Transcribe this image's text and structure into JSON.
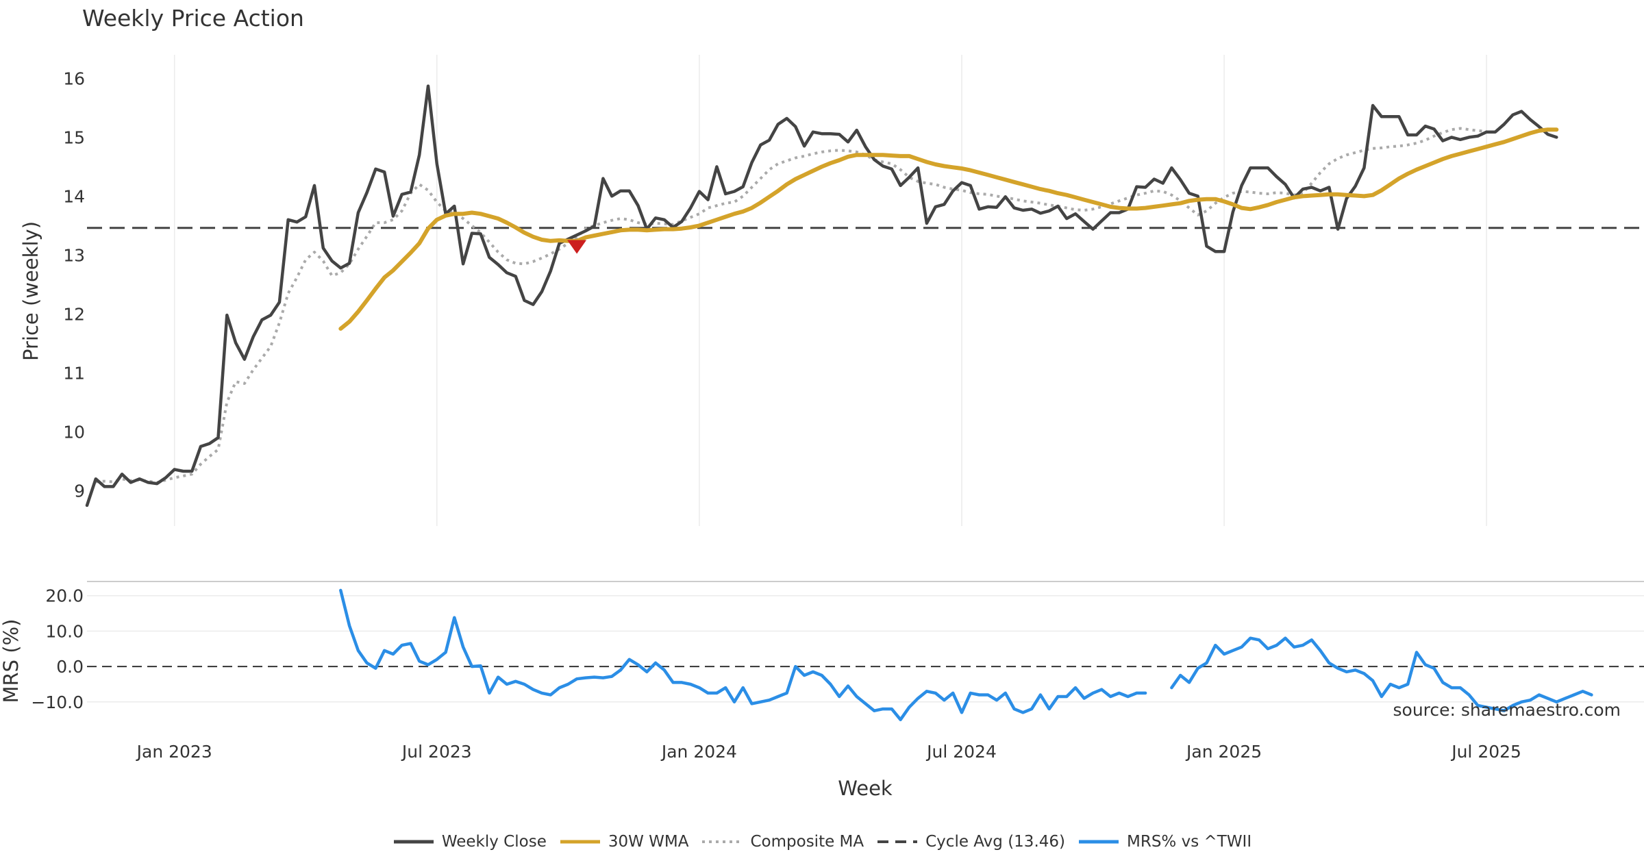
{
  "chart_data": [
    {
      "type": "line",
      "title": "Weekly Price Action",
      "ylabel": "Price (weekly)",
      "ylim": [
        8.4,
        16.4
      ],
      "yticks": [
        "9",
        "10",
        "11",
        "12",
        "13",
        "14",
        "15",
        "16"
      ],
      "xlim": [
        0,
        178
      ],
      "x_ticks": [
        {
          "label": "Jan 2023",
          "x": 10
        },
        {
          "label": "Jul 2023",
          "x": 40
        },
        {
          "label": "Jan 2024",
          "x": 70
        },
        {
          "label": "Jul 2024",
          "x": 100
        },
        {
          "label": "Jan 2025",
          "x": 130
        },
        {
          "label": "Jul 2025",
          "x": 160
        }
      ],
      "grid": true,
      "series": [
        {
          "name": "Weekly Close",
          "color": "#444444",
          "values": [
            8.75,
            9.2,
            9.07,
            9.07,
            9.28,
            9.14,
            9.2,
            9.14,
            9.12,
            9.22,
            9.36,
            9.33,
            9.33,
            9.75,
            9.8,
            9.9,
            11.98,
            11.51,
            11.23,
            11.61,
            11.9,
            11.98,
            12.2,
            13.6,
            13.56,
            13.65,
            14.18,
            13.12,
            12.9,
            12.78,
            12.86,
            13.72,
            14.06,
            14.46,
            14.41,
            13.66,
            14.03,
            14.07,
            14.7,
            15.87,
            14.55,
            13.7,
            13.83,
            12.85,
            13.37,
            13.36,
            12.96,
            12.84,
            12.7,
            12.64,
            12.23,
            12.16,
            12.38,
            12.73,
            13.2,
            13.27,
            13.34,
            13.41,
            13.49,
            14.3,
            14.0,
            14.09,
            14.09,
            13.84,
            13.44,
            13.63,
            13.6,
            13.47,
            13.57,
            13.8,
            14.08,
            13.94,
            14.5,
            14.04,
            14.08,
            14.16,
            14.57,
            14.87,
            14.95,
            15.22,
            15.32,
            15.18,
            14.85,
            15.09,
            15.06,
            15.06,
            15.05,
            14.92,
            15.12,
            14.84,
            14.62,
            14.51,
            14.46,
            14.18,
            14.32,
            14.48,
            13.54,
            13.82,
            13.86,
            14.09,
            14.23,
            14.18,
            13.78,
            13.82,
            13.81,
            13.99,
            13.8,
            13.76,
            13.78,
            13.71,
            13.75,
            13.83,
            13.62,
            13.7,
            13.57,
            13.44,
            13.58,
            13.72,
            13.72,
            13.78,
            14.16,
            14.15,
            14.29,
            14.22,
            14.48,
            14.28,
            14.05,
            14.0,
            13.15,
            13.06,
            13.06,
            13.73,
            14.18,
            14.48,
            14.48,
            14.48,
            14.33,
            14.2,
            13.97,
            14.12,
            14.15,
            14.09,
            14.15,
            13.44,
            13.96,
            14.17,
            14.48,
            15.54,
            15.35,
            15.35,
            15.35,
            15.04,
            15.04,
            15.19,
            15.14,
            14.94,
            15.0,
            14.96,
            15.0,
            15.02,
            15.09,
            15.09,
            15.22,
            15.38,
            15.44,
            15.3,
            15.18,
            15.05,
            15.0
          ]
        },
        {
          "name": "30W WMA",
          "color": "#d4a32a",
          "values": [
            null,
            null,
            null,
            null,
            null,
            null,
            null,
            null,
            null,
            null,
            null,
            null,
            null,
            null,
            null,
            null,
            null,
            null,
            null,
            null,
            null,
            null,
            null,
            null,
            null,
            null,
            null,
            null,
            null,
            11.75,
            11.87,
            12.04,
            12.23,
            12.43,
            12.62,
            12.74,
            12.89,
            13.04,
            13.2,
            13.45,
            13.6,
            13.67,
            13.7,
            13.7,
            13.72,
            13.7,
            13.66,
            13.62,
            13.55,
            13.47,
            13.38,
            13.31,
            13.26,
            13.24,
            13.25,
            13.24,
            13.24,
            13.3,
            13.33,
            13.36,
            13.39,
            13.42,
            13.43,
            13.43,
            13.42,
            13.43,
            13.44,
            13.44,
            13.45,
            13.47,
            13.5,
            13.55,
            13.6,
            13.65,
            13.7,
            13.74,
            13.8,
            13.89,
            13.99,
            14.09,
            14.2,
            14.29,
            14.36,
            14.43,
            14.5,
            14.56,
            14.61,
            14.67,
            14.7,
            14.7,
            14.7,
            14.7,
            14.69,
            14.68,
            14.68,
            14.63,
            14.58,
            14.54,
            14.51,
            14.49,
            14.47,
            14.44,
            14.4,
            14.36,
            14.32,
            14.28,
            14.24,
            14.2,
            14.16,
            14.12,
            14.09,
            14.05,
            14.02,
            13.98,
            13.94,
            13.9,
            13.86,
            13.82,
            13.8,
            13.79,
            13.79,
            13.8,
            13.82,
            13.84,
            13.86,
            13.88,
            13.92,
            13.94,
            13.95,
            13.95,
            13.91,
            13.86,
            13.8,
            13.78,
            13.81,
            13.85,
            13.9,
            13.94,
            13.98,
            14.0,
            14.01,
            14.02,
            14.03,
            14.03,
            14.02,
            14.01,
            14.0,
            14.02,
            14.1,
            14.2,
            14.3,
            14.38,
            14.45,
            14.51,
            14.57,
            14.63,
            14.68,
            14.72,
            14.76,
            14.8,
            14.84,
            14.88,
            14.92,
            14.97,
            15.02,
            15.07,
            15.11,
            15.13,
            15.13
          ]
        },
        {
          "name": "Composite MA",
          "color": "#aaaaaa",
          "values": [
            null,
            9.15,
            9.16,
            9.15,
            9.2,
            9.17,
            9.18,
            9.16,
            9.14,
            9.18,
            9.22,
            9.25,
            9.28,
            9.45,
            9.58,
            9.7,
            10.5,
            10.85,
            10.82,
            11.05,
            11.25,
            11.45,
            11.85,
            12.35,
            12.62,
            12.92,
            13.05,
            12.9,
            12.65,
            12.7,
            12.85,
            13.1,
            13.32,
            13.55,
            13.55,
            13.6,
            13.75,
            14.05,
            14.2,
            14.1,
            13.9,
            13.75,
            13.72,
            13.62,
            13.5,
            13.38,
            13.22,
            13.05,
            12.92,
            12.86,
            12.85,
            12.89,
            12.95,
            13.02,
            13.1,
            13.2,
            13.3,
            13.45,
            13.5,
            13.55,
            13.59,
            13.62,
            13.6,
            13.55,
            13.52,
            13.54,
            13.53,
            13.52,
            13.58,
            13.64,
            13.7,
            13.8,
            13.84,
            13.88,
            13.9,
            14.0,
            14.15,
            14.3,
            14.45,
            14.55,
            14.6,
            14.65,
            14.68,
            14.72,
            14.75,
            14.77,
            14.78,
            14.77,
            14.75,
            14.7,
            14.62,
            14.58,
            14.55,
            14.45,
            14.32,
            14.25,
            14.22,
            14.2,
            14.15,
            14.12,
            14.1,
            14.06,
            14.04,
            14.03,
            14.0,
            13.98,
            13.95,
            13.92,
            13.9,
            13.88,
            13.85,
            13.83,
            13.8,
            13.77,
            13.76,
            13.78,
            13.82,
            13.87,
            13.92,
            13.97,
            14.02,
            14.05,
            14.09,
            14.08,
            14.02,
            13.92,
            13.8,
            13.68,
            13.75,
            13.88,
            13.98,
            14.05,
            14.08,
            14.07,
            14.05,
            14.04,
            14.06,
            14.05,
            14.02,
            14.05,
            14.22,
            14.4,
            14.55,
            14.64,
            14.7,
            14.74,
            14.78,
            14.81,
            14.82,
            14.84,
            14.85,
            14.87,
            14.9,
            14.95,
            15.02,
            15.08,
            15.13,
            15.15,
            15.13,
            15.11,
            15.1
          ]
        },
        {
          "name": "Cycle Avg (13.46)",
          "color": "#444444",
          "dashed": true,
          "constant": 13.46
        }
      ],
      "markers": [
        {
          "type": "down-triangle",
          "x": 56,
          "y": 13.15,
          "color": "#cc1f1f"
        }
      ]
    },
    {
      "type": "line",
      "ylabel": "MRS (%)",
      "xlabel": "Week",
      "ylim": [
        -17,
        24
      ],
      "yticks": [
        "20.0",
        "10.0",
        "0.0",
        "−10.0"
      ],
      "xlim": [
        0,
        178
      ],
      "x_ticks": [
        {
          "label": "Jan 2023",
          "x": 10
        },
        {
          "label": "Jul 2023",
          "x": 40
        },
        {
          "label": "Jan 2024",
          "x": 70
        },
        {
          "label": "Jul 2024",
          "x": 100
        },
        {
          "label": "Jan 2025",
          "x": 130
        },
        {
          "label": "Jul 2025",
          "x": 160
        }
      ],
      "reference_line": 0,
      "annotation": "source: sharemaestro.com",
      "series": [
        {
          "name": "MRS% vs ^TWII",
          "color": "#2b8ee6",
          "values": [
            null,
            null,
            null,
            null,
            null,
            null,
            null,
            null,
            null,
            null,
            null,
            null,
            null,
            null,
            null,
            null,
            null,
            null,
            null,
            null,
            null,
            null,
            null,
            null,
            null,
            null,
            null,
            null,
            null,
            21.5,
            11.5,
            4.5,
            1.0,
            -0.5,
            4.5,
            3.5,
            6.0,
            6.5,
            1.5,
            0.5,
            2.0,
            4.0,
            13.8,
            5.5,
            0.0,
            0.2,
            -7.5,
            -3.0,
            -5.0,
            -4.2,
            -5.0,
            -6.5,
            -7.5,
            -8.0,
            -6.0,
            -5.0,
            -3.5,
            -3.2,
            -3.0,
            -3.2,
            -2.8,
            -1.0,
            2.0,
            0.5,
            -1.5,
            1.0,
            -1.0,
            -4.5,
            -4.5,
            -5.0,
            -6.0,
            -7.5,
            -7.5,
            -6.0,
            -10.0,
            -6.0,
            -10.5,
            -10.0,
            -9.5,
            -8.5,
            -7.5,
            0.0,
            -2.5,
            -1.5,
            -2.5,
            -5.0,
            -8.5,
            -5.5,
            -8.5,
            -10.5,
            -12.5,
            -12.0,
            -12.0,
            -15.0,
            -11.5,
            -9.0,
            -7.0,
            -7.5,
            -9.5,
            -7.5,
            -13.0,
            -7.5,
            -8.0,
            -8.0,
            -9.5,
            -7.5,
            -12.0,
            -13.0,
            -12.0,
            -8.0,
            -12.0,
            -8.5,
            -8.5,
            -6.0,
            -9.0,
            -7.5,
            -6.5,
            -8.5,
            -7.5,
            -8.5,
            -7.5,
            -7.5,
            null,
            null,
            -6.0,
            -2.5,
            -4.5,
            -0.5,
            1.0,
            6.0,
            3.5,
            4.5,
            5.5,
            8.0,
            7.5,
            5.0,
            6.0,
            8.0,
            5.5,
            6.0,
            7.5,
            4.5,
            1.0,
            -0.5,
            -1.5,
            -1.0,
            -2.0,
            -4.0,
            -8.5,
            -5.0,
            -6.0,
            -5.0,
            4.0,
            0.5,
            -0.5,
            -4.5,
            -6.0,
            -6.0,
            -8.0,
            -11.0,
            -11.5,
            -12.0,
            -12.5,
            -11.0,
            -10.0,
            -9.5,
            -8.0,
            -9.0,
            -10.0,
            -9.0,
            -8.0,
            -7.0,
            -8.0
          ]
        }
      ]
    }
  ],
  "legend": [
    {
      "label": "Weekly Close",
      "color": "#444444",
      "style": "solid"
    },
    {
      "label": "30W WMA",
      "color": "#d4a32a",
      "style": "solid"
    },
    {
      "label": "Composite MA",
      "color": "#aaaaaa",
      "style": "dotted"
    },
    {
      "label": "Cycle Avg (13.46)",
      "color": "#444444",
      "style": "dashed"
    },
    {
      "label": "MRS% vs ^TWII",
      "color": "#2b8ee6",
      "style": "solid"
    }
  ]
}
